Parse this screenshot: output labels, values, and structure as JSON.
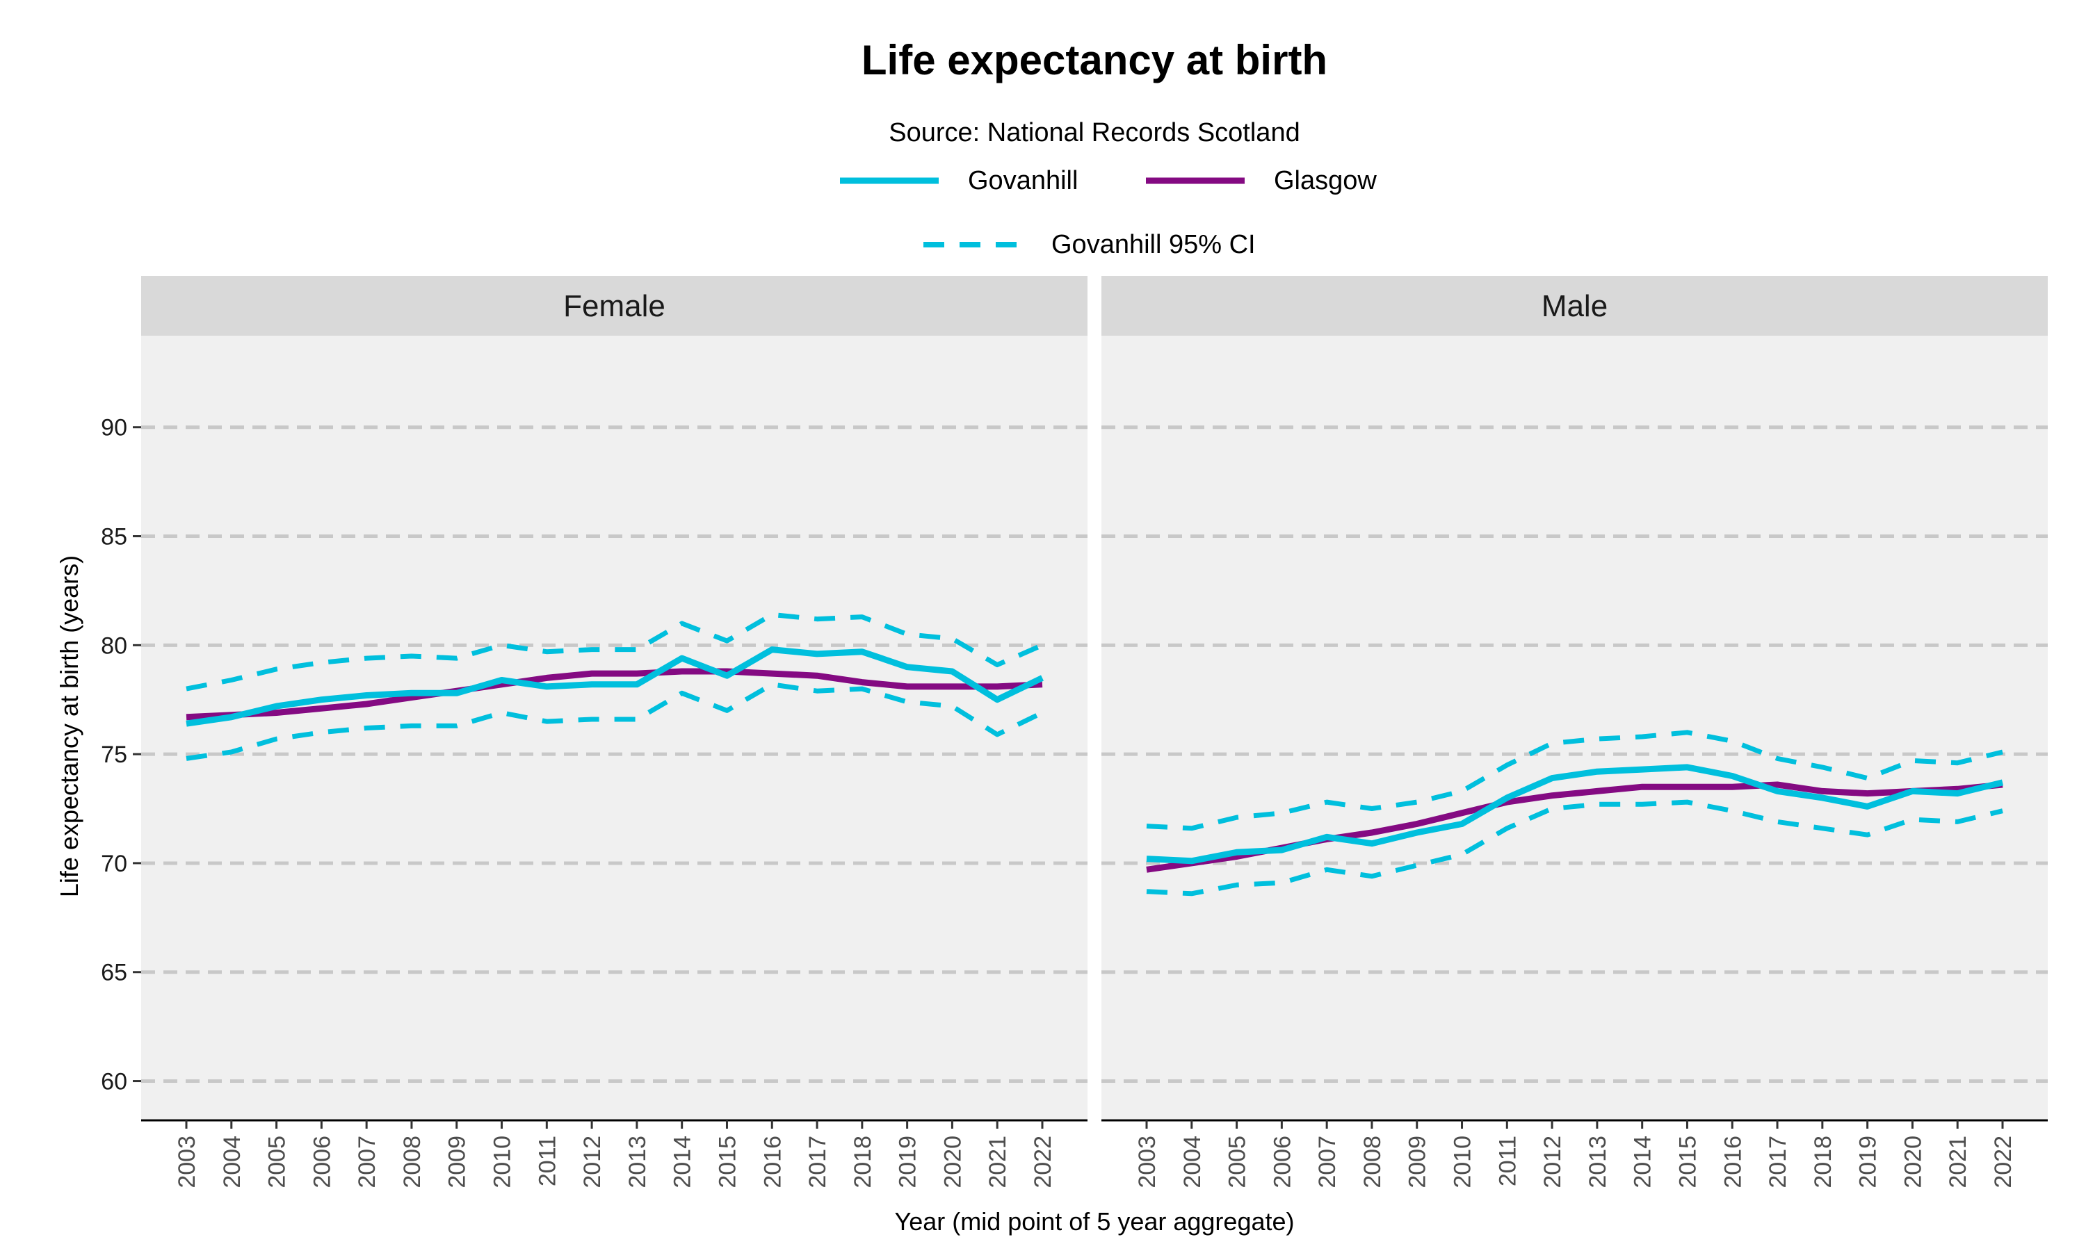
{
  "chart_data": {
    "type": "line",
    "title": "Life expectancy at birth",
    "subtitle": "Source: National Records Scotland",
    "xlabel": "Year (mid point of 5 year aggregate)",
    "ylabel": "Life expectancy at birth (years)",
    "ylim": [
      58.2,
      94.2
    ],
    "yticks": [
      60,
      65,
      70,
      75,
      80,
      85,
      90
    ],
    "grid": "horizontal dashed",
    "legend_position": "top",
    "legend": [
      {
        "name": "Govanhill",
        "color": "#00BFDD",
        "style": "solid"
      },
      {
        "name": "Glasgow",
        "color": "#840a82",
        "style": "solid"
      },
      {
        "name": "Govanhill 95% CI",
        "color": "#00BFDD",
        "style": "dashed"
      }
    ],
    "x": [
      "2003",
      "2004",
      "2005",
      "2006",
      "2007",
      "2008",
      "2009",
      "2010",
      "2011",
      "2012",
      "2013",
      "2014",
      "2015",
      "2016",
      "2017",
      "2018",
      "2019",
      "2020",
      "2021",
      "2022"
    ],
    "panels": [
      {
        "name": "Female",
        "series": [
          {
            "name": "Govanhill 95% CI",
            "role": "upper",
            "values": [
              78.0,
              78.4,
              78.9,
              79.2,
              79.4,
              79.5,
              79.4,
              80.0,
              79.7,
              79.8,
              79.8,
              81.0,
              80.2,
              81.4,
              81.2,
              81.3,
              80.5,
              80.3,
              79.1,
              80.0
            ]
          },
          {
            "name": "Govanhill 95% CI",
            "role": "lower",
            "values": [
              74.8,
              75.1,
              75.7,
              76.0,
              76.2,
              76.3,
              76.3,
              76.9,
              76.5,
              76.6,
              76.6,
              77.8,
              77.0,
              78.2,
              77.9,
              78.0,
              77.4,
              77.2,
              75.9,
              76.9
            ]
          },
          {
            "name": "Glasgow",
            "values": [
              76.7,
              76.8,
              76.9,
              77.1,
              77.3,
              77.6,
              77.9,
              78.2,
              78.5,
              78.7,
              78.7,
              78.8,
              78.8,
              78.7,
              78.6,
              78.3,
              78.1,
              78.1,
              78.1,
              78.2
            ]
          },
          {
            "name": "Govanhill",
            "values": [
              76.4,
              76.7,
              77.2,
              77.5,
              77.7,
              77.8,
              77.8,
              78.4,
              78.1,
              78.2,
              78.2,
              79.4,
              78.6,
              79.8,
              79.6,
              79.7,
              79.0,
              78.8,
              77.5,
              78.5
            ]
          }
        ]
      },
      {
        "name": "Male",
        "series": [
          {
            "name": "Govanhill 95% CI",
            "role": "upper",
            "values": [
              71.7,
              71.6,
              72.1,
              72.3,
              72.8,
              72.5,
              72.8,
              73.3,
              74.5,
              75.5,
              75.7,
              75.8,
              76.0,
              75.6,
              74.8,
              74.4,
              73.9,
              74.7,
              74.6,
              75.1
            ]
          },
          {
            "name": "Govanhill 95% CI",
            "role": "lower",
            "values": [
              68.7,
              68.6,
              69.0,
              69.1,
              69.7,
              69.4,
              69.9,
              70.4,
              71.6,
              72.5,
              72.7,
              72.7,
              72.8,
              72.4,
              71.9,
              71.6,
              71.3,
              72.0,
              71.9,
              72.4
            ]
          },
          {
            "name": "Glasgow",
            "values": [
              69.7,
              70.0,
              70.3,
              70.7,
              71.1,
              71.4,
              71.8,
              72.3,
              72.8,
              73.1,
              73.3,
              73.5,
              73.5,
              73.5,
              73.6,
              73.3,
              73.2,
              73.3,
              73.4,
              73.6
            ]
          },
          {
            "name": "Govanhill",
            "values": [
              70.2,
              70.1,
              70.5,
              70.6,
              71.2,
              70.9,
              71.4,
              71.8,
              73.0,
              73.9,
              74.2,
              74.3,
              74.4,
              74.0,
              73.3,
              73.0,
              72.6,
              73.3,
              73.2,
              73.7
            ]
          }
        ]
      }
    ]
  }
}
